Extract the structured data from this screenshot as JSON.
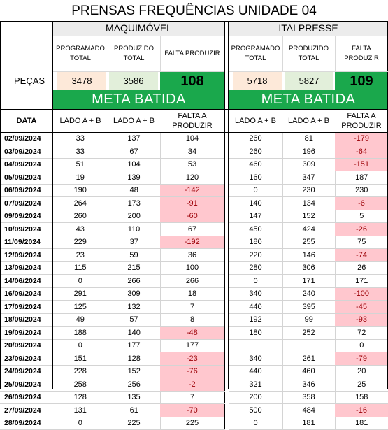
{
  "title": "PRENSAS FREQUÊNCIAS UNIDADE 04",
  "pecas_label": "PEÇAS",
  "date_header": "DATA",
  "maquimovel": {
    "name": "MAQUIMÓVEL",
    "programado_label": "PROGRAMADO TOTAL",
    "produzido_label": "PRODUZIDO TOTAL",
    "falta_label": "FALTA PRODUZIR",
    "programado": "3478",
    "produzido": "3586",
    "falta": "108",
    "meta": "META BATIDA",
    "col1": "LADO A + B",
    "col2": "LADO A + B",
    "col3": "FALTA A PRODUZIR"
  },
  "italpresse": {
    "name": "ITALPRESSE",
    "programado_label": "PROGRAMADO TOTAL",
    "produzido_label": "PRODUZIDO TOTAL",
    "falta_label": "FALTA PRODUZIR",
    "programado": "5718",
    "produzido": "5827",
    "falta": "109",
    "meta": "META BATIDA",
    "col1": "LADO A + B",
    "col2": "LADO A + B",
    "col3": "FALTA A PRODUZIR"
  },
  "rows": [
    {
      "date": "02/09/2024",
      "m": [
        "33",
        "137",
        "104"
      ],
      "i": [
        "260",
        "81",
        "-179"
      ]
    },
    {
      "date": "03/09/2024",
      "m": [
        "33",
        "67",
        "34"
      ],
      "i": [
        "260",
        "196",
        "-64"
      ]
    },
    {
      "date": "04/09/2024",
      "m": [
        "51",
        "104",
        "53"
      ],
      "i": [
        "460",
        "309",
        "-151"
      ]
    },
    {
      "date": "05/09/2024",
      "m": [
        "19",
        "139",
        "120"
      ],
      "i": [
        "160",
        "347",
        "187"
      ]
    },
    {
      "date": "06/09/2024",
      "m": [
        "190",
        "48",
        "-142"
      ],
      "i": [
        "0",
        "230",
        "230"
      ]
    },
    {
      "date": "07/09/2024",
      "m": [
        "264",
        "173",
        "-91"
      ],
      "i": [
        "140",
        "134",
        "-6"
      ]
    },
    {
      "date": "09/09/2024",
      "m": [
        "260",
        "200",
        "-60"
      ],
      "i": [
        "147",
        "152",
        "5"
      ]
    },
    {
      "date": "10/09/2024",
      "m": [
        "43",
        "110",
        "67"
      ],
      "i": [
        "450",
        "424",
        "-26"
      ]
    },
    {
      "date": "11/09/2024",
      "m": [
        "229",
        "37",
        "-192"
      ],
      "i": [
        "180",
        "255",
        "75"
      ]
    },
    {
      "date": "12/09/2024",
      "m": [
        "23",
        "59",
        "36"
      ],
      "i": [
        "220",
        "146",
        "-74"
      ]
    },
    {
      "date": "13/09/2024",
      "m": [
        "115",
        "215",
        "100"
      ],
      "i": [
        "280",
        "306",
        "26"
      ]
    },
    {
      "date": "14/06/2024",
      "m": [
        "0",
        "266",
        "266"
      ],
      "i": [
        "0",
        "171",
        "171"
      ]
    },
    {
      "date": "16/09/2024",
      "m": [
        "291",
        "309",
        "18"
      ],
      "i": [
        "340",
        "240",
        "-100"
      ]
    },
    {
      "date": "17/09/2024",
      "m": [
        "125",
        "132",
        "7"
      ],
      "i": [
        "440",
        "395",
        "-45"
      ]
    },
    {
      "date": "18/09/2024",
      "m": [
        "49",
        "57",
        "8"
      ],
      "i": [
        "192",
        "99",
        "-93"
      ]
    },
    {
      "date": "19/09/2024",
      "m": [
        "188",
        "140",
        "-48"
      ],
      "i": [
        "180",
        "252",
        "72"
      ]
    },
    {
      "date": "20/09/2024",
      "m": [
        "0",
        "177",
        "177"
      ],
      "i": [
        "",
        "",
        "0"
      ]
    },
    {
      "date": "23/09/2024",
      "m": [
        "151",
        "128",
        "-23"
      ],
      "i": [
        "340",
        "261",
        "-79"
      ]
    },
    {
      "date": "24/09/2024",
      "m": [
        "228",
        "152",
        "-76"
      ],
      "i": [
        "440",
        "460",
        "20"
      ]
    },
    {
      "date": "25/09/2024",
      "m": [
        "258",
        "256",
        "-2"
      ],
      "i": [
        "321",
        "346",
        "25"
      ]
    },
    {
      "date": "26/09/2024",
      "m": [
        "128",
        "135",
        "7"
      ],
      "i": [
        "200",
        "358",
        "158"
      ]
    },
    {
      "date": "27/09/2024",
      "m": [
        "131",
        "61",
        "-70"
      ],
      "i": [
        "500",
        "484",
        "-16"
      ]
    },
    {
      "date": "28/09/2024",
      "m": [
        "0",
        "225",
        "225"
      ],
      "i": [
        "0",
        "181",
        "181"
      ]
    }
  ],
  "colors": {
    "meta_green": "#1aa84c",
    "negative_fill": "#ffc7ce",
    "negative_text": "#9c0006",
    "programado_fill": "#fde9d9",
    "produzido_fill": "#e2efda"
  }
}
